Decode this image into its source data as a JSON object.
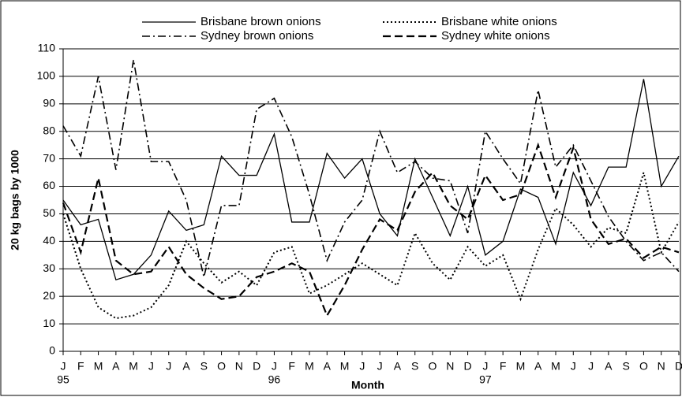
{
  "chart_data": {
    "type": "line",
    "y_label": "20 kg bags by 1000",
    "x_label": "Month",
    "categories": [
      "J",
      "F",
      "M",
      "A",
      "M",
      "J",
      "J",
      "A",
      "S",
      "O",
      "N",
      "D",
      "J",
      "F",
      "M",
      "A",
      "M",
      "J",
      "J",
      "A",
      "S",
      "O",
      "N",
      "D",
      "J",
      "F",
      "M",
      "A",
      "M",
      "J",
      "J",
      "A",
      "S",
      "O",
      "N",
      "D"
    ],
    "years": [
      "95",
      "96",
      "97"
    ],
    "ylim": [
      0,
      110
    ],
    "yticks": [
      0,
      10,
      20,
      30,
      40,
      50,
      60,
      70,
      80,
      90,
      100,
      110
    ],
    "grid": true,
    "series": [
      {
        "name": "Brisbane brown onions",
        "color": "#000000",
        "dash": "solid",
        "values": [
          55,
          46,
          48,
          26,
          28,
          35,
          51,
          44,
          46,
          71,
          64,
          64,
          79,
          47,
          47,
          72,
          63,
          70,
          50,
          42,
          70,
          56,
          42,
          60,
          35,
          40,
          59,
          56,
          39,
          65,
          53,
          67,
          67,
          99,
          60,
          71
        ]
      },
      {
        "name": "Brisbane white onions",
        "color": "#000000",
        "dash": "dotted",
        "values": [
          50,
          30,
          16,
          12,
          13,
          16,
          24,
          40,
          32,
          25,
          29,
          24,
          36,
          38,
          21,
          24,
          28,
          32,
          28,
          24,
          43,
          32,
          26,
          38,
          31,
          35,
          19,
          37,
          52,
          46,
          38,
          45,
          43,
          65,
          36,
          47
        ]
      },
      {
        "name": "Sydney brown onions",
        "color": "#000000",
        "dash": "dashdot",
        "values": [
          82,
          71,
          100,
          66,
          106,
          69,
          69,
          55,
          27,
          53,
          53,
          88,
          92,
          78,
          57,
          33,
          47,
          55,
          80,
          65,
          69,
          63,
          62,
          43,
          80,
          70,
          61,
          95,
          67,
          75,
          62,
          49,
          40,
          33,
          36,
          29
        ]
      },
      {
        "name": "Sydney white onions",
        "color": "#000000",
        "dash": "dashed",
        "values": [
          54,
          36,
          63,
          33,
          28,
          29,
          38,
          28,
          23,
          19,
          20,
          27,
          29,
          32,
          29,
          13,
          24,
          37,
          48,
          44,
          58,
          65,
          53,
          48,
          64,
          55,
          57,
          75,
          56,
          74,
          48,
          39,
          41,
          34,
          38,
          36
        ]
      }
    ]
  }
}
